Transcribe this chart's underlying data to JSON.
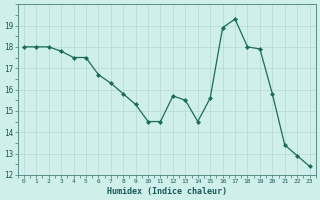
{
  "x": [
    0,
    1,
    2,
    3,
    4,
    5,
    6,
    7,
    8,
    9,
    10,
    11,
    12,
    13,
    14,
    15,
    16,
    17,
    18,
    19,
    20,
    21,
    22,
    23
  ],
  "y": [
    18.0,
    18.0,
    18.0,
    17.8,
    17.5,
    17.5,
    16.7,
    16.3,
    15.8,
    15.3,
    14.5,
    14.5,
    15.7,
    15.5,
    14.5,
    15.6,
    18.9,
    19.3,
    18.0,
    17.9,
    15.8,
    13.4,
    12.9,
    12.4
  ],
  "xlabel": "Humidex (Indice chaleur)",
  "ylim": [
    12,
    20
  ],
  "xlim": [
    -0.5,
    23.5
  ],
  "yticks": [
    12,
    13,
    14,
    15,
    16,
    17,
    18,
    19
  ],
  "xticks": [
    0,
    1,
    2,
    3,
    4,
    5,
    6,
    7,
    8,
    9,
    10,
    11,
    12,
    13,
    14,
    15,
    16,
    17,
    18,
    19,
    20,
    21,
    22,
    23
  ],
  "line_color": "#1a6b5a",
  "marker": "D",
  "marker_size": 2.0,
  "bg_color": "#cff0ea",
  "grid_color_major": "#b8d8d2",
  "grid_color_minor": "#d4ecea",
  "font_color": "#1a5a5a",
  "spine_color": "#5a8a8a"
}
